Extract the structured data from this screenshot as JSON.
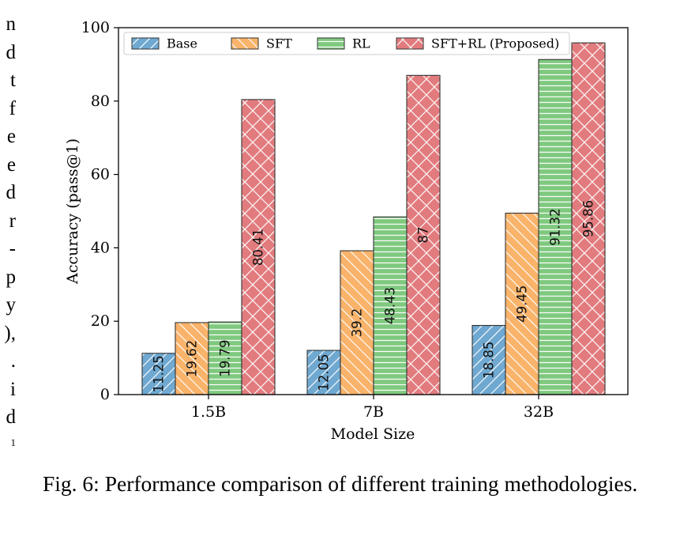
{
  "page": {
    "left_fragments": [
      "n",
      "d",
      "t",
      "f",
      "e",
      "e",
      "d",
      "r",
      "-",
      "p",
      "y",
      "),",
      ".",
      "i",
      "d",
      "1"
    ],
    "caption": "Fig. 6: Performance comparison of different training methodologies."
  },
  "chart_data": {
    "type": "bar",
    "title": "",
    "xlabel": "Model Size",
    "ylabel": "Accuracy (pass@1)",
    "ylim": [
      0,
      100
    ],
    "yticks": [
      0,
      20,
      40,
      60,
      80,
      100
    ],
    "categories": [
      "1.5B",
      "7B",
      "32B"
    ],
    "grid": false,
    "legend_position": "top",
    "series": [
      {
        "name": "Base",
        "color": "#6fa8d0",
        "hatch": "diagonal",
        "values": [
          11.25,
          12.05,
          18.85
        ],
        "labels": [
          "11.25",
          "12.05",
          "18.85"
        ]
      },
      {
        "name": "SFT",
        "color": "#f9b36a",
        "hatch": "back-diagonal",
        "values": [
          19.62,
          39.2,
          49.45
        ],
        "labels": [
          "19.62",
          "39.2",
          "49.45"
        ]
      },
      {
        "name": "RL",
        "color": "#7fc97f",
        "hatch": "horizontal",
        "values": [
          19.79,
          48.43,
          91.32
        ],
        "labels": [
          "19.79",
          "48.43",
          "91.32"
        ]
      },
      {
        "name": "SFT+RL (Proposed)",
        "color": "#e27b7e",
        "hatch": "cross",
        "values": [
          80.41,
          87,
          95.86
        ],
        "labels": [
          "80.41",
          "87",
          "95.86"
        ]
      }
    ]
  }
}
